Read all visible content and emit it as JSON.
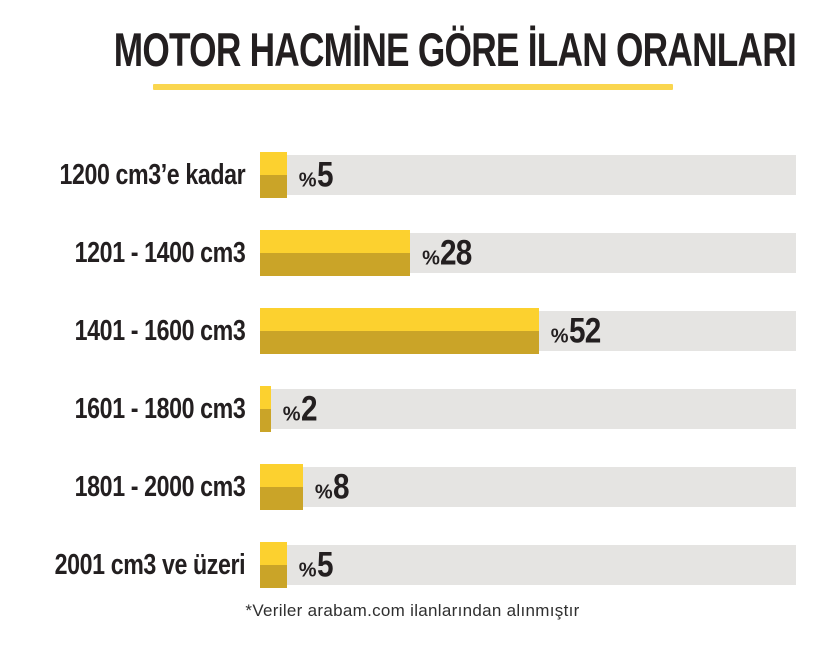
{
  "title": "MOTOR HACMİNE GÖRE İLAN ORANLARI",
  "footer_note": "*Veriler arabam.com ilanlarından alınmıştır",
  "colors": {
    "bar_top": "#FCD12F",
    "bar_bottom": "#CAA428",
    "track": "#E5E4E2",
    "underline": "#FAD64F",
    "text": "#231F20"
  },
  "chart_data": {
    "type": "bar",
    "orientation": "horizontal",
    "title": "MOTOR HACMİNE GÖRE İLAN ORANLARI",
    "categories": [
      "1200 cm3’e kadar",
      "1201 - 1400 cm3",
      "1401 - 1600 cm3",
      "1601 - 1800 cm3",
      "1801 - 2000 cm3",
      "2001 cm3 ve üzeri"
    ],
    "values": [
      5,
      28,
      52,
      2,
      8,
      5
    ],
    "value_prefix": "%",
    "value_labels": [
      "%5",
      "%28",
      "%52",
      "%2",
      "%8",
      "%5"
    ],
    "xlim": [
      0,
      100
    ],
    "grid": false,
    "legend": false,
    "bar_style": "two-tone yellow (light top half, dark gold bottom half) on light gray full-width track",
    "source_note": "*Veriler arabam.com ilanlarından alınmıştır"
  }
}
